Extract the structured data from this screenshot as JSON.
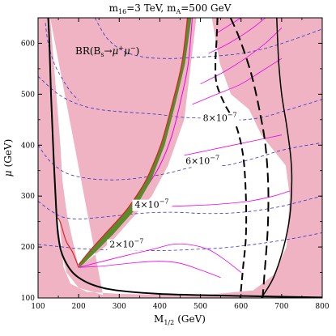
{
  "chart_data": {
    "type": "contour",
    "title": "m16=3 TeV, mA=500 GeV",
    "title_parts": {
      "m16_sym": "m",
      "m16_sub": "16",
      "m16_val": "=3 TeV,",
      "mA_sym": "m",
      "mA_sub": "A",
      "mA_val": "=500 GeV"
    },
    "xlabel": "M1/2 (GeV)",
    "xlabel_parts": {
      "sym": "M",
      "sub": "1/2",
      "unit": "(GeV)"
    },
    "ylabel": "μ (GeV)",
    "ylabel_parts": {
      "sym": "μ",
      "unit": "(GeV)"
    },
    "xlim": [
      100,
      800
    ],
    "ylim": [
      100,
      650
    ],
    "xticks": [
      100,
      200,
      300,
      400,
      500,
      600,
      700,
      800
    ],
    "xtick_labels": [
      "100",
      "200",
      "300",
      "400",
      "500",
      "600",
      "700",
      "800"
    ],
    "yticks": [
      100,
      200,
      300,
      400,
      500,
      600
    ],
    "ytick_labels": [
      "100",
      "200",
      "300",
      "400",
      "500",
      "600"
    ],
    "legend_text": "BR(Bs→μ+μ−)",
    "legend_parts": {
      "pre": "BR(B",
      "sub": "s",
      "arrow": "→",
      "mu1": "μ",
      "sup1": "+",
      "mu2": "μ",
      "sup2": "−",
      "post": ")"
    },
    "colors": {
      "excluded": "#efb3c3",
      "allowed": "#ffffff",
      "br_contour": "#3333cc",
      "magenta_contour": "#ee00ee",
      "green_band": "#5b8a2c",
      "red_edge": "#dd2222",
      "black": "#000000"
    },
    "regions": {
      "left_excluded_boundary": [
        [
          100,
          650
        ],
        [
          130,
          650
        ],
        [
          145,
          500
        ],
        [
          155,
          400
        ],
        [
          160,
          330
        ],
        [
          170,
          280
        ],
        [
          190,
          200
        ],
        [
          200,
          160
        ],
        [
          180,
          185
        ],
        [
          160,
          230
        ],
        [
          148,
          258
        ],
        [
          140,
          300
        ],
        [
          131,
          380
        ],
        [
          125,
          470
        ],
        [
          121,
          560
        ],
        [
          118,
          650
        ]
      ],
      "allowed_region": [
        [
          130,
          650
        ],
        [
          145,
          500
        ],
        [
          155,
          400
        ],
        [
          160,
          330
        ],
        [
          172,
          260
        ],
        [
          200,
          160
        ],
        [
          280,
          210
        ],
        [
          380,
          300
        ],
        [
          420,
          360
        ],
        [
          460,
          450
        ],
        [
          490,
          650
        ],
        [
          528,
          650
        ],
        [
          548,
          560
        ],
        [
          575,
          500
        ],
        [
          620,
          470
        ],
        [
          650,
          420
        ],
        [
          710,
          360
        ],
        [
          720,
          300
        ],
        [
          712,
          200
        ],
        [
          680,
          145
        ],
        [
          630,
          115
        ],
        [
          500,
          105
        ],
        [
          300,
          108
        ],
        [
          220,
          112
        ],
        [
          180,
          128
        ],
        [
          163,
          160
        ],
        [
          155,
          230
        ],
        [
          153,
          255
        ],
        [
          145,
          258
        ],
        [
          152,
          230
        ],
        [
          158,
          190
        ],
        [
          170,
          150
        ],
        [
          200,
          120
        ],
        [
          260,
          106
        ]
      ],
      "right_excluded_boundary": [
        [
          800,
          650
        ],
        [
          710,
          650
        ],
        [
          700,
          600
        ],
        [
          700,
          530
        ],
        [
          715,
          450
        ],
        [
          728,
          375
        ],
        [
          730,
          300
        ],
        [
          722,
          200
        ],
        [
          700,
          130
        ],
        [
          680,
          100
        ],
        [
          800,
          100
        ]
      ]
    },
    "green_band": {
      "upper": [
        [
          468,
          650
        ],
        [
          454,
          560
        ],
        [
          430,
          480
        ],
        [
          402,
          400
        ],
        [
          365,
          330
        ],
        [
          320,
          275
        ],
        [
          270,
          230
        ],
        [
          225,
          190
        ],
        [
          200,
          165
        ]
      ],
      "lower": [
        [
          478,
          650
        ],
        [
          462,
          560
        ],
        [
          438,
          480
        ],
        [
          412,
          400
        ],
        [
          378,
          330
        ],
        [
          335,
          270
        ],
        [
          285,
          225
        ],
        [
          235,
          185
        ],
        [
          203,
          160
        ]
      ]
    },
    "red_edge": [
      [
        200,
        160
      ],
      [
        185,
        190
      ],
      [
        170,
        210
      ],
      [
        160,
        235
      ],
      [
        155,
        248
      ],
      [
        150,
        256
      ],
      [
        146,
        256
      ],
      [
        145,
        258
      ]
    ],
    "magenta_band_left": [
      [
        200,
        160
      ],
      [
        225,
        190
      ],
      [
        265,
        225
      ],
      [
        310,
        262
      ],
      [
        360,
        310
      ],
      [
        400,
        360
      ],
      [
        430,
        420
      ],
      [
        455,
        500
      ],
      [
        470,
        560
      ],
      [
        480,
        650
      ]
    ],
    "black_solid_lower": [
      [
        125,
        650
      ],
      [
        128,
        600
      ],
      [
        132,
        500
      ],
      [
        137,
        400
      ],
      [
        143,
        300
      ],
      [
        150,
        220
      ],
      [
        165,
        175
      ],
      [
        200,
        140
      ],
      [
        270,
        118
      ],
      [
        400,
        108
      ],
      [
        600,
        104
      ],
      [
        800,
        101
      ]
    ],
    "black_solid_right": [
      [
        650,
        100
      ],
      [
        680,
        140
      ],
      [
        705,
        200
      ],
      [
        720,
        260
      ],
      [
        725,
        330
      ],
      [
        722,
        380
      ],
      [
        712,
        440
      ],
      [
        700,
        500
      ],
      [
        693,
        560
      ],
      [
        690,
        610
      ],
      [
        688,
        650
      ]
    ],
    "black_dashed_inner": [
      [
        542,
        650
      ],
      [
        540,
        610
      ],
      [
        537,
        560
      ],
      [
        540,
        520
      ],
      [
        560,
        480
      ],
      [
        587,
        440
      ],
      [
        605,
        380
      ],
      [
        612,
        300
      ],
      [
        612,
        220
      ],
      [
        605,
        160
      ],
      [
        598,
        100
      ]
    ],
    "black_dashed_outer": [
      [
        574,
        650
      ],
      [
        596,
        610
      ],
      [
        625,
        540
      ],
      [
        645,
        470
      ],
      [
        660,
        400
      ],
      [
        667,
        320
      ],
      [
        666,
        240
      ],
      [
        660,
        170
      ],
      [
        653,
        100
      ]
    ],
    "br_contours": [
      {
        "label": "2×10−7",
        "label_parts": {
          "num": "2×10",
          "exp": "−7"
        },
        "label_at": [
          318,
          199
        ],
        "points": [
          [
            100,
            205
          ],
          [
            150,
            201
          ],
          [
            200,
            197
          ],
          [
            250,
            195
          ],
          [
            300,
            194
          ],
          [
            350,
            193
          ],
          [
            400,
            193
          ],
          [
            450,
            194
          ],
          [
            500,
            196
          ],
          [
            550,
            198
          ],
          [
            600,
            202
          ],
          [
            650,
            207
          ],
          [
            700,
            213
          ],
          [
            750,
            220
          ],
          [
            800,
            228
          ]
        ]
      },
      {
        "label": "4×10−7",
        "label_parts": {
          "num": "4×10",
          "exp": "−7"
        },
        "label_at": [
          380,
          277
        ],
        "points": [
          [
            100,
            290
          ],
          [
            130,
            272
          ],
          [
            160,
            259
          ],
          [
            200,
            255
          ],
          [
            250,
            258
          ],
          [
            300,
            262
          ],
          [
            350,
            266
          ],
          [
            400,
            268
          ],
          [
            450,
            268
          ],
          [
            500,
            266
          ],
          [
            550,
            266
          ],
          [
            600,
            268
          ],
          [
            650,
            273
          ],
          [
            700,
            280
          ],
          [
            750,
            290
          ],
          [
            800,
            300
          ]
        ]
      },
      {
        "label": "6×10−7",
        "label_parts": {
          "num": "6×10",
          "exp": "−7"
        },
        "label_at": [
          505,
          363
        ],
        "points": [
          [
            100,
            400
          ],
          [
            130,
            368
          ],
          [
            170,
            345
          ],
          [
            220,
            335
          ],
          [
            270,
            332
          ],
          [
            320,
            333
          ],
          [
            370,
            338
          ],
          [
            420,
            345
          ],
          [
            470,
            355
          ],
          [
            520,
            361
          ],
          [
            560,
            360
          ],
          [
            600,
            367
          ],
          [
            650,
            378
          ],
          [
            700,
            390
          ],
          [
            750,
            398
          ],
          [
            800,
            405
          ]
        ]
      },
      {
        "label": "8×10−7",
        "label_parts": {
          "num": "8×10",
          "exp": "−7"
        },
        "label_at": [
          548,
          447
        ],
        "points": [
          [
            100,
            535
          ],
          [
            150,
            500
          ],
          [
            200,
            480
          ],
          [
            250,
            470
          ],
          [
            300,
            466
          ],
          [
            350,
            463
          ],
          [
            400,
            460
          ],
          [
            450,
            455
          ],
          [
            500,
            453
          ],
          [
            560,
            450
          ],
          [
            610,
            450
          ],
          [
            660,
            456
          ],
          [
            710,
            468
          ],
          [
            760,
            480
          ],
          [
            800,
            490
          ]
        ]
      },
      {
        "label": "",
        "points": [
          [
            240,
            650
          ],
          [
            270,
            610
          ],
          [
            310,
            585
          ],
          [
            360,
            573
          ],
          [
            420,
            570
          ],
          [
            480,
            572
          ],
          [
            540,
            575
          ],
          [
            600,
            580
          ],
          [
            660,
            590
          ],
          [
            720,
            605
          ],
          [
            780,
            622
          ],
          [
            800,
            628
          ]
        ]
      },
      {
        "label": "",
        "points": [
          [
            118,
            640
          ],
          [
            125,
            600
          ],
          [
            140,
            560
          ],
          [
            160,
            530
          ],
          [
            180,
            505
          ],
          [
            200,
            488
          ]
        ]
      }
    ],
    "magenta_contours": [
      {
        "points": [
          [
            200,
            160
          ],
          [
            250,
            162
          ],
          [
            300,
            166
          ],
          [
            350,
            170
          ],
          [
            400,
            172
          ],
          [
            450,
            168
          ],
          [
            500,
            155
          ],
          [
            550,
            140
          ]
        ]
      },
      {
        "points": [
          [
            200,
            160
          ],
          [
            260,
            172
          ],
          [
            320,
            184
          ],
          [
            380,
            195
          ],
          [
            430,
            205
          ],
          [
            470,
            205
          ],
          [
            520,
            195
          ],
          [
            560,
            175
          ],
          [
            600,
            150
          ]
        ]
      },
      {
        "points": [
          [
            430,
            280
          ],
          [
            500,
            282
          ],
          [
            560,
            285
          ],
          [
            620,
            290
          ],
          [
            680,
            300
          ],
          [
            720,
            310
          ]
        ]
      },
      {
        "points": [
          [
            460,
            380
          ],
          [
            520,
            390
          ],
          [
            580,
            400
          ],
          [
            640,
            410
          ],
          [
            700,
            420
          ]
        ]
      },
      {
        "points": [
          [
            480,
            480
          ],
          [
            540,
            500
          ],
          [
            600,
            520
          ],
          [
            650,
            545
          ],
          [
            700,
            570
          ]
        ]
      },
      {
        "points": [
          [
            500,
            520
          ],
          [
            560,
            545
          ],
          [
            610,
            570
          ],
          [
            660,
            600
          ],
          [
            700,
            630
          ]
        ]
      },
      {
        "points": [
          [
            520,
            580
          ],
          [
            570,
            600
          ],
          [
            620,
            625
          ],
          [
            660,
            650
          ]
        ]
      },
      {
        "points": [
          [
            540,
            620
          ],
          [
            580,
            640
          ],
          [
            600,
            650
          ]
        ]
      }
    ]
  }
}
